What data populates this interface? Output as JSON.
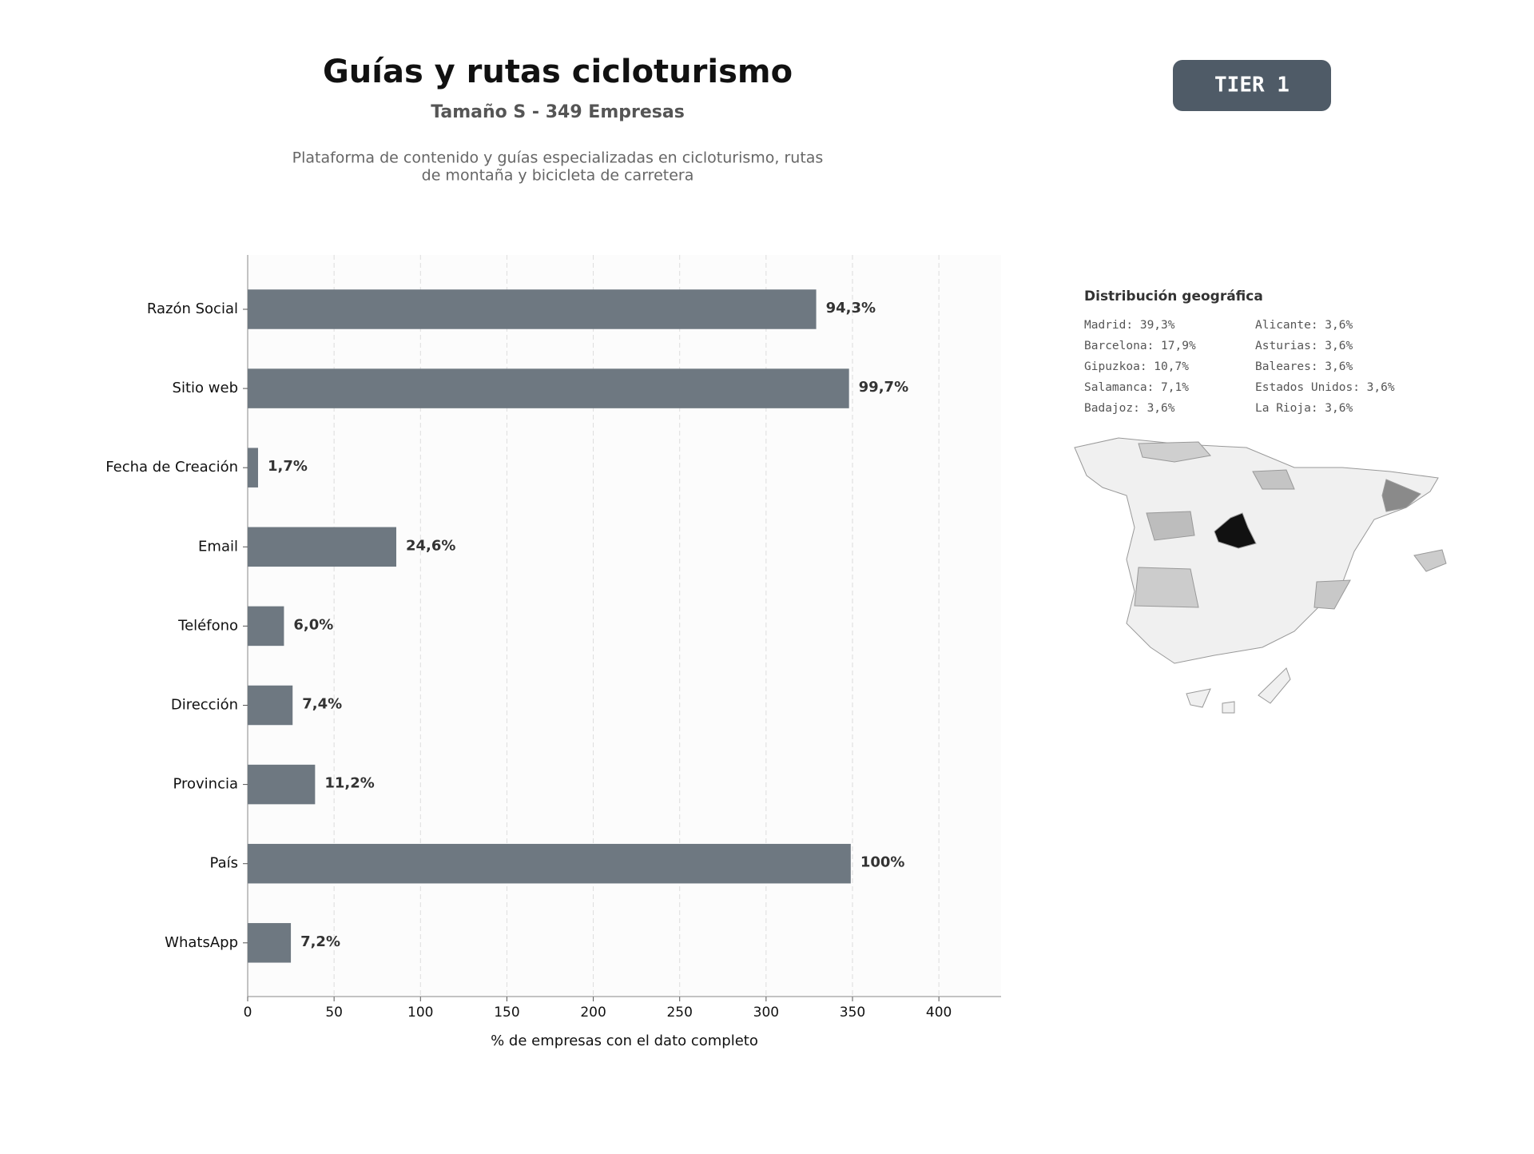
{
  "header": {
    "title": "Guías y rutas cicloturismo",
    "subtitle": "Tamaño S - 349 Empresas",
    "description": [
      "Plataforma de contenido y guías especializadas en cicloturismo, rutas",
      "de montaña y bicicleta de carretera"
    ],
    "badge": "TIER 1"
  },
  "chart_data": {
    "type": "barh",
    "categories": [
      "Razón Social",
      "Sitio web",
      "Fecha de Creación",
      "Email",
      "Teléfono",
      "Dirección",
      "Provincia",
      "País",
      "WhatsApp"
    ],
    "values": [
      329,
      348,
      6,
      86,
      21,
      26,
      39,
      349,
      25
    ],
    "value_labels": [
      "94,3%",
      "99,7%",
      "1,7%",
      "24,6%",
      "6,0%",
      "7,4%",
      "11,2%",
      "100%",
      "7,2%"
    ],
    "color": "#6e7881",
    "xlim": [
      0,
      436
    ],
    "xticks": [
      0,
      50,
      100,
      150,
      200,
      250,
      300,
      350,
      400
    ],
    "xlabel": "% de empresas con el dato completo",
    "grid": true
  },
  "geo": {
    "title": "Distribución geográfica",
    "items": [
      "Madrid: 39,3%",
      "Barcelona: 17,9%",
      "Gipuzkoa: 10,7%",
      "Salamanca: 7,1%",
      "Badajoz: 3,6%",
      "Alicante: 3,6%",
      "Asturias: 3,6%",
      "Baleares: 3,6%",
      "Estados Unidos: 3,6%",
      "La Rioja: 3,6%"
    ]
  }
}
